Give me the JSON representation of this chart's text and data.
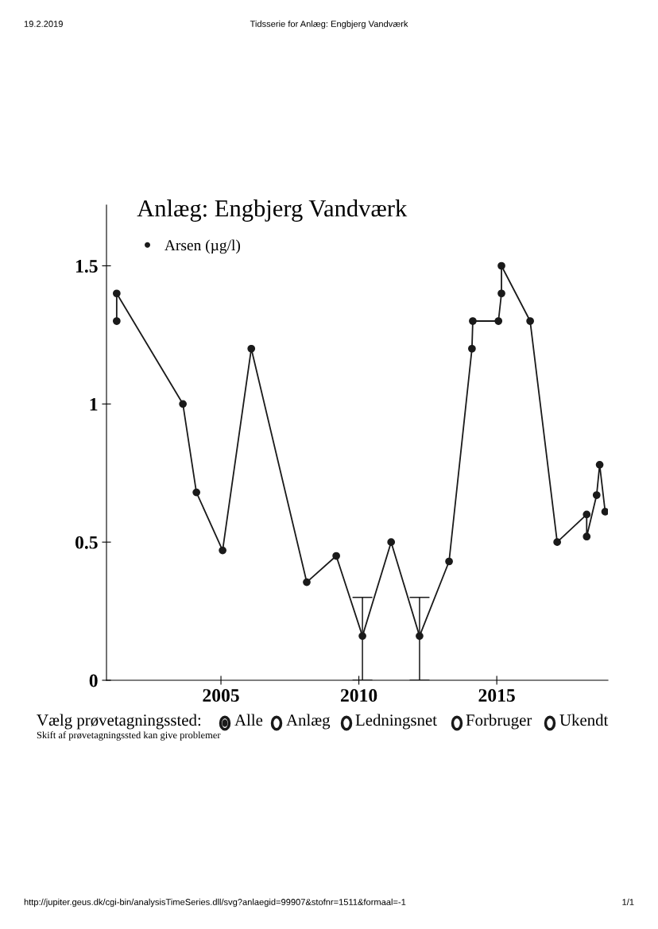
{
  "chart_data": {
    "type": "line",
    "title": "Anlæg: Engbjerg Vandværk",
    "x": [
      2001.22,
      2001.22,
      2003.62,
      2004.11,
      2005.06,
      2006.1,
      2008.11,
      2009.18,
      2010.13,
      2011.17,
      2012.2,
      2013.27,
      2014.1,
      2014.13,
      2015.06,
      2015.17,
      2015.17,
      2016.21,
      2017.19,
      2018.26,
      2018.26,
      2018.62,
      2018.73,
      2018.93
    ],
    "series": [
      {
        "name": "Arsen (µg/l)",
        "color": "#1a1a1a",
        "values": [
          1.3,
          1.4,
          1.0,
          0.68,
          0.47,
          1.2,
          0.355,
          0.45,
          0.16,
          0.5,
          0.16,
          0.43,
          1.2,
          1.3,
          1.3,
          1.4,
          1.5,
          1.3,
          0.5,
          0.6,
          0.52,
          0.67,
          0.78,
          0.61
        ],
        "errors": [
          null,
          null,
          null,
          null,
          null,
          null,
          null,
          null,
          [
            0,
            0.3
          ],
          null,
          [
            0,
            0.3
          ],
          null,
          null,
          null,
          null,
          null,
          null,
          null,
          null,
          null,
          null,
          null,
          null,
          null
        ]
      }
    ],
    "xlim": [
      2000.85,
      2019.03
    ],
    "xticks": [
      2005,
      2010,
      2015
    ],
    "ylim": [
      0,
      1.72
    ],
    "yticks": [
      0,
      0.5,
      1,
      1.5
    ],
    "marker": "circle",
    "line_style": "solid",
    "grid": false,
    "legend": "top left",
    "annotations": [
      "19.2.2019",
      "Tidsserie for Anlæg: Engbjerg Vandværk",
      "Vælg prøvetagningssted:",
      "Alle",
      "Anlæg",
      "Ledningsnet",
      "Forbruger",
      "Ukendt",
      "Skift af prøvetagningssted kan give problemer",
      "http://jupiter.geus.dk/cgi-bin/analysisTimeSeries.dll/svg?anlaegid=99907&stofnr=1511&formaal=-1",
      "1/1"
    ]
  }
}
